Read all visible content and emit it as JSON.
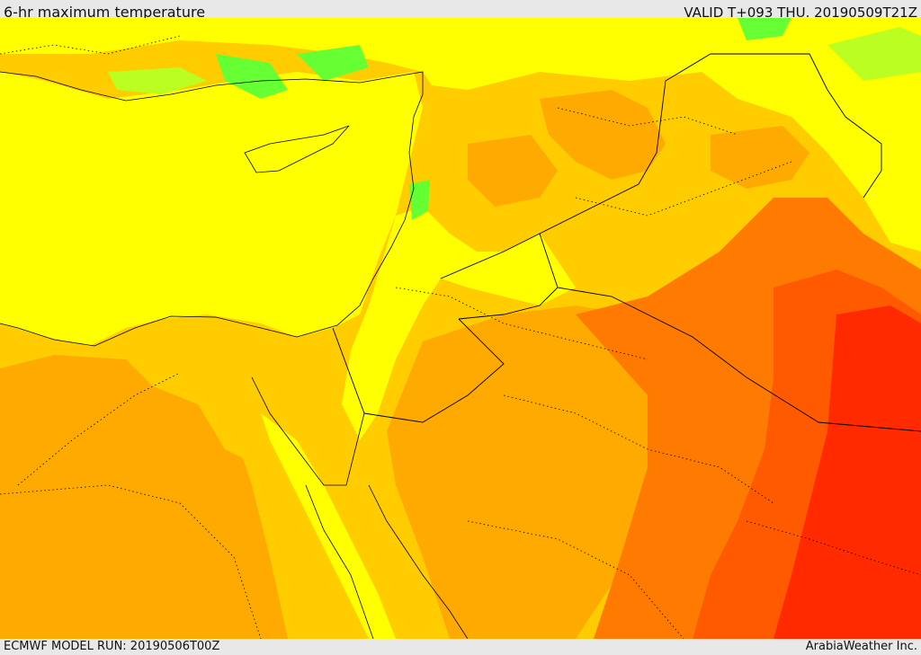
{
  "header": {
    "title": "6-hr maximum temperature",
    "valid_time": "VALID T+093 THU. 20190509T21Z"
  },
  "footer": {
    "model_run": "ECMWF MODEL RUN: 20190506T00Z",
    "credit": "ArabiaWeather Inc."
  },
  "map": {
    "colors": {
      "sea_yellow": "#ffff00",
      "light_orange": "#ffcc00",
      "orange": "#ffaa00",
      "dark_orange": "#ff7a00",
      "red_orange": "#ff5a00",
      "red": "#ff2a00",
      "green": "#66ff33",
      "light_green": "#bbff22"
    }
  }
}
